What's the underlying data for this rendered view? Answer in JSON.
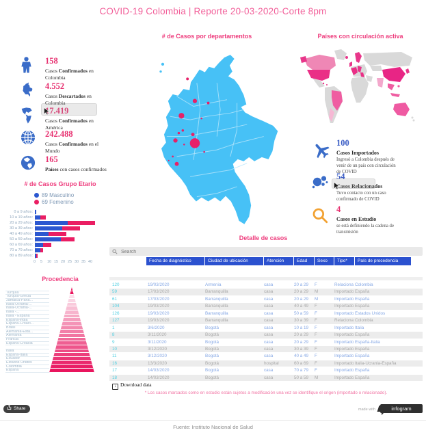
{
  "title": "COVID-19 Colombia | Reporte 20-03-2020-Corte 8pm",
  "headers": {
    "map": "# de Casos por departamentos",
    "world": "Países con circulación activa",
    "age": "# de Casos Grupo Etario",
    "origin": "Procedencia",
    "detail": "Detalle de casos"
  },
  "left_stats": [
    {
      "icon": "person-icon",
      "value": "158",
      "label_parts": [
        {
          "t": "Casos ",
          "b": false
        },
        {
          "t": "Confirmados",
          "b": true
        },
        {
          "t": " en Colombia",
          "b": false
        }
      ]
    },
    {
      "icon": "colombia-icon",
      "value": "4.552",
      "label_parts": [
        {
          "t": "Casos ",
          "b": false
        },
        {
          "t": "Descartados",
          "b": true
        },
        {
          "t": " en Colombia",
          "b": false
        }
      ]
    },
    {
      "icon": "americas-icon",
      "value": "17.419",
      "label_parts": [
        {
          "t": "Casos ",
          "b": false
        },
        {
          "t": "Confirmados",
          "b": true
        },
        {
          "t": " en América",
          "b": false
        }
      ]
    },
    {
      "icon": "globe-icon",
      "value": "242.488",
      "label_parts": [
        {
          "t": "Casos ",
          "b": false
        },
        {
          "t": "Confirmados",
          "b": true
        },
        {
          "t": " en el Mundo",
          "b": false
        }
      ]
    },
    {
      "icon": "globe2-icon",
      "value": "165",
      "label_parts": [
        {
          "t": "Países",
          "b": true
        },
        {
          "t": " con casos confirmados",
          "b": false
        }
      ]
    }
  ],
  "right_stats": [
    {
      "icon": "plane-icon",
      "value": "100",
      "value_color": "#3c5ec5",
      "label": "Casos Importados",
      "desc": "Ingresó a Colombia después de venir de un país con circulación de COVID"
    },
    {
      "icon": "bubbles-icon",
      "value": "54",
      "value_color": "#3c5ec5",
      "label": "Casos Relacionados",
      "desc": "Tuvo contacto con un caso confirmado de COVID"
    },
    {
      "icon": "magnifier-icon",
      "value": "4",
      "value_color": "#e73271",
      "label": "Casos en Estudio",
      "desc": "se está definiendo la cadena de transmisión"
    }
  ],
  "chart_data": [
    {
      "type": "bar",
      "orientation": "horizontal",
      "stacked": true,
      "title": "# de Casos Grupo Etario",
      "legend": [
        "89 Masculino",
        "69 Femenino"
      ],
      "legend_position": "top",
      "categories": [
        "0 a 9 años:",
        "10 a 19 años:",
        "20 a 29 años:",
        "30 a 39 años:",
        "40 a 49 años:",
        "50 a 59 años:",
        "60 a 69 años:",
        "70 a 79 años:",
        "80 a 89 años:"
      ],
      "series": [
        {
          "name": "Masculino",
          "total": 89,
          "color": "#2b57d0",
          "values": [
            1,
            4,
            24,
            20,
            10,
            19,
            6,
            4,
            1
          ]
        },
        {
          "name": "Femenino",
          "total": 69,
          "color": "#ea1e63",
          "values": [
            0,
            4,
            20,
            13,
            13,
            10,
            6,
            2,
            1
          ]
        }
      ],
      "xlim": [
        0,
        45
      ],
      "xticks": [
        0,
        5,
        10,
        15,
        20,
        25,
        30,
        35,
        40
      ],
      "grid": false
    },
    {
      "type": "funnel",
      "title": "Procedencia",
      "labels": [
        "",
        "Turquía",
        "Turquía-Grecia",
        "Jamaica-Pána...",
        "Italia-Ucrania-...",
        "Italia-Ucrania-...",
        "Italia -...",
        "Italia - España",
        "España-india",
        "España-Croaci...",
        "Brasil",
        "Alemania-Esta...",
        "Alemania",
        "Francia",
        "España-Croacia",
        "",
        "Italia",
        "España-Italia",
        "Ecuador",
        "Estados Unidos",
        "Colombia",
        "España"
      ],
      "values_shown": false,
      "palette": [
        "#e9155e",
        "#e9155e",
        "#fbdfea",
        "#fad4e3",
        "#f9cadb",
        "#f8bfd4",
        "#f7b4cd",
        "#f6aac5",
        "#f59fbe",
        "#f494b7",
        "#f38aaf",
        "#f27fa8",
        "#f175a1",
        "#f06a99",
        "#ef5f92",
        "#ee558b",
        "#ed4a83",
        "#ec3f7c",
        "#eb3575",
        "#ea2a6d",
        "#e91f66",
        "#e9155e"
      ]
    },
    {
      "type": "map",
      "title": "# de Casos por departamentos",
      "region": "Colombia",
      "bubble_color": "#e62169",
      "fill": "#47c1f6"
    },
    {
      "type": "map",
      "title": "Países con circulación activa",
      "fill_base": "#d9d9d9",
      "fill_active": [
        "#ef87b5",
        "#ea2f86"
      ]
    }
  ],
  "table": {
    "search_placeholder": "Search",
    "columns": [
      "Fecha de diagnóstico",
      "Ciudad de ubicación",
      "Atención",
      "Edad",
      "Sexo",
      "Tipo*",
      "País de procedencia"
    ],
    "rows": [
      [
        "120",
        "19/03/2020",
        "Armenia",
        "casa",
        "20 a 29",
        "F",
        "Relacionado",
        "Colombia"
      ],
      [
        "59",
        "17/03/2020",
        "Barranquilla",
        "casa",
        "20 a 29",
        "M",
        "Importado",
        "España"
      ],
      [
        "61",
        "17/03/2020",
        "Barranquilla",
        "casa",
        "20 a 29",
        "M",
        "Importado",
        "España"
      ],
      [
        "104",
        "19/03/2020",
        "Barranquilla",
        "casa",
        "40 a 49",
        "F",
        "Importado",
        "España"
      ],
      [
        "126",
        "19/03/2020",
        "Barranquilla",
        "casa",
        "50 a 59",
        "F",
        "Importado",
        "Estados Unidos"
      ],
      [
        "127",
        "19/03/2020",
        "Barranquilla",
        "casa",
        "30 a 39",
        "F",
        "Relacionado",
        "Colombia"
      ],
      [
        "1",
        "3/6/2020",
        "Bogotá",
        "casa",
        "10 a 19",
        "F",
        "Importado",
        "Italia"
      ],
      [
        "8",
        "3/11/2020",
        "Bogotá",
        "casa",
        "20 a 29",
        "F",
        "Importado",
        "España"
      ],
      [
        "9",
        "3/11/2020",
        "Bogotá",
        "casa",
        "20 a 29",
        "F",
        "Importado",
        "España-Italia"
      ],
      [
        "10",
        "3/12/2020",
        "Bogotá",
        "casa",
        "30 a 39",
        "F",
        "Importado",
        "España"
      ],
      [
        "11",
        "3/12/2020",
        "Bogotá",
        "casa",
        "40 a 49",
        "F",
        "Importado",
        "España"
      ],
      [
        "16",
        "13/3/2020",
        "Bogotá",
        "hospital",
        "60 a 69",
        "F",
        "Importado",
        "Italia-Ucrania-España"
      ],
      [
        "17",
        "14/03/2020",
        "Bogotá",
        "casa",
        "70 a 79",
        "F",
        "Importado",
        "España"
      ],
      [
        "18",
        "14/03/2020",
        "Bogotá",
        "casa",
        "50 a 59",
        "M",
        "Importado",
        "España"
      ]
    ],
    "download_label": "Download data",
    "note": "* Los casos marcados como en estudio están sujetos a modificación una vez se identifique el origen (importado o relacionado)."
  },
  "footer": {
    "share_label": "Share",
    "made_with": "made with",
    "brand": "infogram",
    "source": "Fuente: Instituto Nacional de Salud"
  },
  "colors": {
    "accent_pink": "#ee3b7c",
    "title_pink": "#f2609a",
    "stat_pink": "#e73271",
    "stat_blue": "#3a6cc8",
    "orange": "#f2a233",
    "map_blue": "#47c1f6",
    "bubble_pink": "#e62169",
    "table_header_blue": "#2b51cf",
    "row_id_teal": "#50cfe2",
    "row_blue_text": "#86a8e5",
    "row_grey_text": "#a8a8a8",
    "zebra_grey": "#ececec"
  }
}
